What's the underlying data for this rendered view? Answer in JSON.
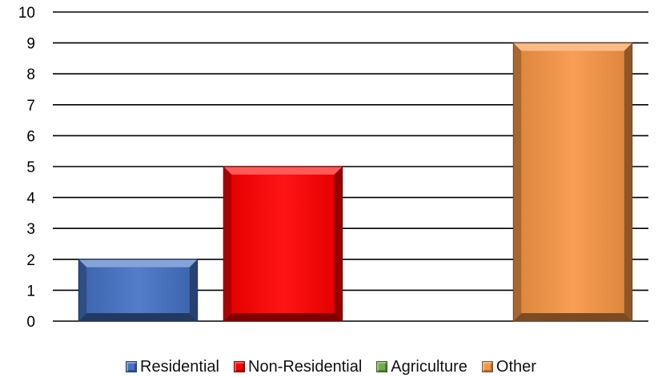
{
  "chart_data": {
    "type": "bar",
    "title": "",
    "xlabel": "",
    "ylabel": "",
    "ylim": [
      0,
      10
    ],
    "yticks": [
      "0",
      "1",
      "2",
      "3",
      "4",
      "5",
      "6",
      "7",
      "8",
      "9",
      "10"
    ],
    "grid": true,
    "legend_position": "bottom",
    "series": [
      {
        "name": "Residential",
        "value": 2,
        "color": "#4472C4"
      },
      {
        "name": "Non-Residential",
        "value": 5,
        "color": "#FF0000"
      },
      {
        "name": "Agriculture",
        "value": 0,
        "color": "#70AD47"
      },
      {
        "name": "Other",
        "value": 9,
        "color": "#F79646"
      }
    ]
  }
}
